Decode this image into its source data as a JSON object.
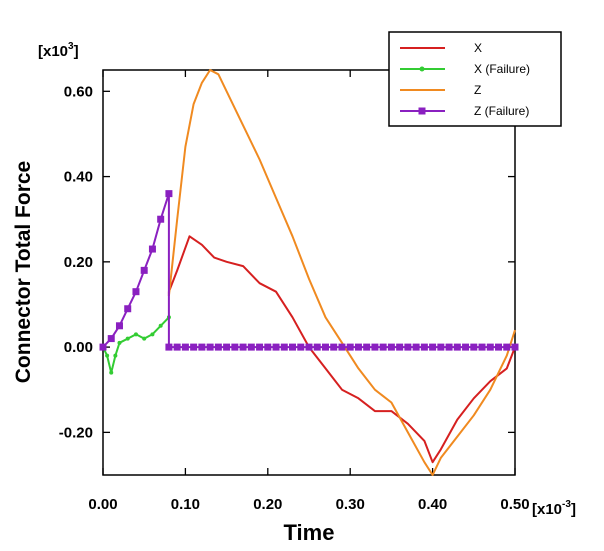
{
  "chart_data": {
    "type": "line",
    "title": "",
    "xlabel": "Time",
    "ylabel": "Connector Total Force",
    "x_multiplier": "[x10",
    "x_multiplier_exp": "-3",
    "x_multiplier_close": "]",
    "y_multiplier": "[x10",
    "y_multiplier_exp": "3",
    "y_multiplier_close": "]",
    "xlim": [
      0.0,
      0.5
    ],
    "ylim": [
      -0.3,
      0.65
    ],
    "x_ticks": [
      0.0,
      0.1,
      0.2,
      0.3,
      0.4,
      0.5
    ],
    "x_tick_labels": [
      "0.00",
      "0.10",
      "0.20",
      "0.30",
      "0.40",
      "0.50"
    ],
    "y_ticks": [
      -0.2,
      0.0,
      0.2,
      0.4,
      0.6
    ],
    "y_tick_labels": [
      "-0.20",
      "0.00",
      "0.20",
      "0.40",
      "0.60"
    ],
    "grid": false,
    "legend_position": "top-right",
    "series": [
      {
        "name": "X",
        "color": "#d62020",
        "marker": "none",
        "x": [
          0.08,
          0.08,
          0.09,
          0.105,
          0.12,
          0.135,
          0.15,
          0.17,
          0.19,
          0.21,
          0.23,
          0.25,
          0.27,
          0.29,
          0.31,
          0.33,
          0.35,
          0.37,
          0.39,
          0.4,
          0.41,
          0.43,
          0.45,
          0.47,
          0.49,
          0.5
        ],
        "y": [
          0.12,
          0.13,
          0.18,
          0.26,
          0.24,
          0.21,
          0.2,
          0.19,
          0.15,
          0.13,
          0.07,
          0.0,
          -0.05,
          -0.1,
          -0.12,
          -0.15,
          -0.15,
          -0.18,
          -0.22,
          -0.27,
          -0.24,
          -0.17,
          -0.12,
          -0.08,
          -0.05,
          -0.0
        ]
      },
      {
        "name": "X (Failure)",
        "color": "#33cc33",
        "marker": "circle",
        "x": [
          0.0,
          0.005,
          0.01,
          0.015,
          0.02,
          0.03,
          0.04,
          0.05,
          0.06,
          0.07,
          0.08
        ],
        "y": [
          0.0,
          -0.02,
          -0.06,
          -0.02,
          0.01,
          0.02,
          0.03,
          0.02,
          0.03,
          0.05,
          0.07
        ]
      },
      {
        "name": "Z",
        "color": "#f08a20",
        "marker": "none",
        "x": [
          0.08,
          0.09,
          0.1,
          0.11,
          0.12,
          0.13,
          0.14,
          0.15,
          0.17,
          0.19,
          0.21,
          0.23,
          0.25,
          0.27,
          0.29,
          0.31,
          0.33,
          0.35,
          0.37,
          0.39,
          0.4,
          0.41,
          0.43,
          0.45,
          0.47,
          0.49,
          0.5
        ],
        "y": [
          0.12,
          0.3,
          0.47,
          0.57,
          0.62,
          0.65,
          0.64,
          0.6,
          0.52,
          0.44,
          0.35,
          0.26,
          0.16,
          0.07,
          0.01,
          -0.05,
          -0.1,
          -0.13,
          -0.2,
          -0.27,
          -0.3,
          -0.26,
          -0.21,
          -0.16,
          -0.1,
          -0.02,
          0.04
        ]
      },
      {
        "name": "Z (Failure)",
        "color": "#8a20c0",
        "marker": "square",
        "x": [
          0.0,
          0.01,
          0.02,
          0.03,
          0.04,
          0.05,
          0.06,
          0.07,
          0.08,
          0.08,
          0.09,
          0.1,
          0.11,
          0.12,
          0.13,
          0.14,
          0.15,
          0.16,
          0.17,
          0.18,
          0.19,
          0.2,
          0.21,
          0.22,
          0.23,
          0.24,
          0.25,
          0.26,
          0.27,
          0.28,
          0.29,
          0.3,
          0.31,
          0.32,
          0.33,
          0.34,
          0.35,
          0.36,
          0.37,
          0.38,
          0.39,
          0.4,
          0.41,
          0.42,
          0.43,
          0.44,
          0.45,
          0.46,
          0.47,
          0.48,
          0.49,
          0.5
        ],
        "y": [
          0.0,
          0.02,
          0.05,
          0.09,
          0.13,
          0.18,
          0.23,
          0.3,
          0.36,
          0.0,
          0.0,
          0.0,
          0.0,
          0.0,
          0.0,
          0.0,
          0.0,
          0.0,
          0.0,
          0.0,
          0.0,
          0.0,
          0.0,
          0.0,
          0.0,
          0.0,
          0.0,
          0.0,
          0.0,
          0.0,
          0.0,
          0.0,
          0.0,
          0.0,
          0.0,
          0.0,
          0.0,
          0.0,
          0.0,
          0.0,
          0.0,
          0.0,
          0.0,
          0.0,
          0.0,
          0.0,
          0.0,
          0.0,
          0.0,
          0.0,
          0.0,
          0.0
        ]
      }
    ]
  }
}
